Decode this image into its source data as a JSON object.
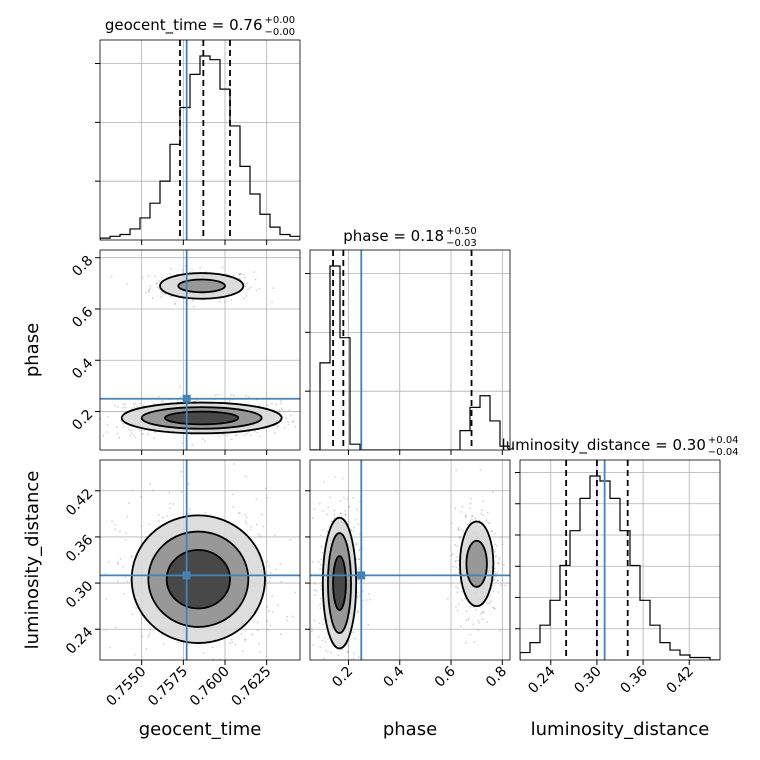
{
  "chart_data": {
    "type": "corner",
    "parameters": [
      "geocent_time",
      "phase",
      "luminosity_distance"
    ],
    "axis_labels": [
      "geocent_time",
      "phase",
      "luminosity_distance"
    ],
    "titles": [
      {
        "text": "geocent_time = 0.76",
        "plus": "+0.00",
        "minus": "−0.00"
      },
      {
        "text": "phase = 0.18",
        "plus": "+0.50",
        "minus": "−0.03"
      },
      {
        "text": "luminosity_distance = 0.30",
        "plus": "+0.04",
        "minus": "−0.04"
      }
    ],
    "ranges": [
      [
        0.7525,
        0.7645
      ],
      [
        0.05,
        0.83
      ],
      [
        0.2,
        0.46
      ]
    ],
    "ticks": [
      {
        "values": [
          0.755,
          0.7575,
          0.76,
          0.7625
        ],
        "labels": [
          "0.7550",
          "0.7575",
          "0.7600",
          "0.7625"
        ]
      },
      {
        "values": [
          0.2,
          0.4,
          0.6,
          0.8
        ],
        "labels": [
          "0.2",
          "0.4",
          "0.6",
          "0.8"
        ]
      },
      {
        "values": [
          0.24,
          0.3,
          0.36,
          0.42
        ],
        "labels": [
          "0.24",
          "0.30",
          "0.36",
          "0.42"
        ]
      }
    ],
    "truths": [
      0.7577,
      0.25,
      0.31
    ],
    "quantiles": [
      [
        0.7573,
        0.7587,
        0.7603
      ],
      [
        0.14,
        0.18,
        0.68
      ],
      [
        0.26,
        0.3,
        0.34
      ]
    ],
    "histograms": [
      {
        "edges_start": 0.7525,
        "bin_width": 0.0006,
        "counts": [
          1,
          2,
          3,
          6,
          12,
          20,
          32,
          52,
          72,
          90,
          100,
          98,
          82,
          62,
          40,
          25,
          14,
          7,
          3,
          2
        ]
      },
      {
        "edges_start": 0.05,
        "bin_width": 0.039,
        "counts": [
          0,
          45,
          95,
          58,
          3,
          0,
          0,
          0,
          0,
          0,
          0,
          0,
          0,
          0,
          0,
          10,
          22,
          28,
          15,
          2
        ]
      },
      {
        "edges_start": 0.2,
        "bin_width": 0.013,
        "counts": [
          3,
          7,
          14,
          24,
          38,
          52,
          65,
          74,
          72,
          65,
          52,
          38,
          24,
          14,
          7,
          4,
          2,
          1,
          1,
          0
        ]
      }
    ],
    "contours": [
      {
        "panel": [
          1,
          0
        ],
        "levels": [
          {
            "cx": 0.7586,
            "cy": 0.69,
            "rx": [
              0.0025,
              0.0014
            ],
            "ry": [
              0.05,
              0.025
            ]
          },
          {
            "cx": 0.7586,
            "cy": 0.175,
            "rx": [
              0.0048,
              0.0036,
              0.0022
            ],
            "ry": [
              0.06,
              0.042,
              0.025
            ]
          }
        ]
      },
      {
        "panel": [
          2,
          0
        ],
        "levels": [
          {
            "cx": 0.7584,
            "cy": 0.305,
            "rx": [
              0.004,
              0.003,
              0.0019
            ],
            "ry": [
              0.083,
              0.062,
              0.038
            ]
          }
        ]
      },
      {
        "panel": [
          2,
          1
        ],
        "levels": [
          {
            "cx": 0.165,
            "cy": 0.3,
            "rx": [
              0.065,
              0.045,
              0.025
            ],
            "ry": [
              0.085,
              0.065,
              0.035
            ]
          },
          {
            "cx": 0.7,
            "cy": 0.325,
            "rx": [
              0.065,
              0.04
            ],
            "ry": [
              0.055,
              0.03
            ]
          }
        ]
      }
    ],
    "colors": {
      "truth": "#4682b4",
      "line": "#000000",
      "grid": "#b0b0b0",
      "scatter": "#7f7f7f"
    },
    "grid": true
  }
}
